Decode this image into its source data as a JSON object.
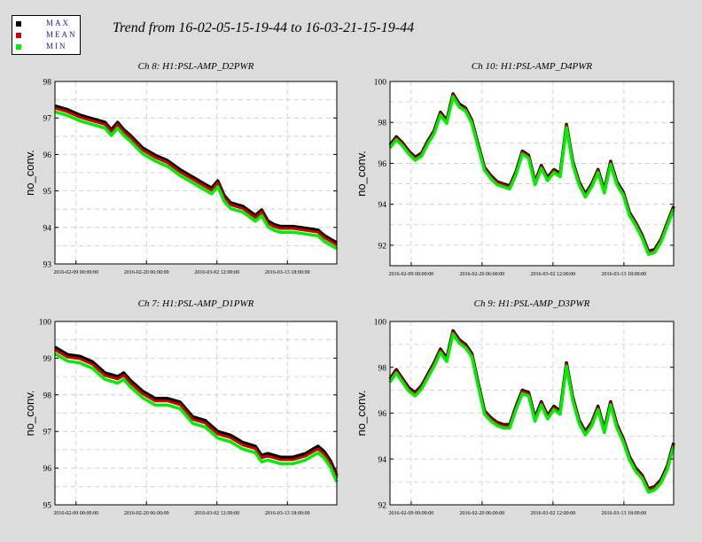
{
  "title": "Trend from 16-02-05-15-19-44 to 16-03-21-15-19-44",
  "legend": [
    {
      "label": "MAX",
      "color": "#000000"
    },
    {
      "label": "MEAN",
      "color": "#cc0000"
    },
    {
      "label": "MIN",
      "color": "#00ee00"
    }
  ],
  "colors": {
    "max": "#000000",
    "mean": "#cc0000",
    "min": "#00ee00",
    "grid": "#c8c8c8",
    "plot_bg": "#ffffff"
  },
  "chart_data": [
    {
      "type": "line",
      "title": "Ch 8: H1:PSL-AMP_D2PWR",
      "ylabel": "no_conv.",
      "ylim": [
        93,
        98
      ],
      "yticks": [
        "93",
        "94",
        "95",
        "96",
        "97",
        "98"
      ],
      "xlim": [
        0,
        45
      ],
      "xticks": [
        {
          "pos": 3.36,
          "label": "2016-02-09 00:00:00"
        },
        {
          "pos": 14.61,
          "label": "2016-02-20 06:00:00"
        },
        {
          "pos": 25.86,
          "label": "2016-03-02 12:00:00"
        },
        {
          "pos": 37.11,
          "label": "2016-03-13 18:00:00"
        }
      ],
      "x": [
        0,
        2,
        4,
        6,
        8,
        9,
        10,
        11,
        12,
        14,
        16,
        18,
        20,
        22,
        24,
        25,
        26,
        27,
        28,
        30,
        32,
        33,
        34,
        35,
        36,
        38,
        40,
        42,
        43,
        44,
        45
      ],
      "series": [
        {
          "name": "MIN",
          "values": [
            97.25,
            97.15,
            97.0,
            96.9,
            96.8,
            96.6,
            96.8,
            96.6,
            96.45,
            96.1,
            95.9,
            95.75,
            95.5,
            95.3,
            95.1,
            95.0,
            95.2,
            94.8,
            94.6,
            94.5,
            94.25,
            94.4,
            94.1,
            94.0,
            93.95,
            93.95,
            93.9,
            93.85,
            93.7,
            93.6,
            93.5
          ]
        }
      ],
      "spread": {
        "max": 0.08,
        "min": -0.08
      }
    },
    {
      "type": "line",
      "title": "Ch 10: H1:PSL-AMP_D4PWR",
      "ylabel": "no_conv.",
      "ylim": [
        91,
        100
      ],
      "yticks": [
        "92",
        "94",
        "96",
        "98",
        "100"
      ],
      "xlim": [
        0,
        45
      ],
      "xticks": [
        {
          "pos": 3.36,
          "label": "2016-02-09 00:00:00"
        },
        {
          "pos": 14.61,
          "label": "2016-02-20 06:00:00"
        },
        {
          "pos": 25.86,
          "label": "2016-03-02 12:00:00"
        },
        {
          "pos": 37.11,
          "label": "2016-03-13 18:00:00"
        }
      ],
      "x": [
        0,
        1,
        2,
        3,
        4,
        5,
        6,
        7,
        8,
        9,
        10,
        11,
        12,
        13,
        14,
        15,
        16,
        17,
        18,
        19,
        20,
        21,
        22,
        23,
        24,
        25,
        26,
        27,
        28,
        29,
        30,
        31,
        32,
        33,
        34,
        35,
        36,
        37,
        38,
        39,
        40,
        41,
        42,
        43,
        44,
        45
      ],
      "series": [
        {
          "name": "MIN",
          "values": [
            96.8,
            97.2,
            96.9,
            96.5,
            96.2,
            96.4,
            97.0,
            97.5,
            98.4,
            98.0,
            99.3,
            98.8,
            98.6,
            98.0,
            96.8,
            95.7,
            95.3,
            95.0,
            94.9,
            94.8,
            95.5,
            96.5,
            96.3,
            95.0,
            95.8,
            95.2,
            95.6,
            95.4,
            97.8,
            96.0,
            95.0,
            94.4,
            94.9,
            95.6,
            94.6,
            96.0,
            95.0,
            94.5,
            93.5,
            93.0,
            92.4,
            91.6,
            91.7,
            92.2,
            93.0,
            93.8
          ]
        }
      ],
      "spread": {
        "max": 0.1,
        "min": -0.05
      }
    },
    {
      "type": "line",
      "title": "Ch 7: H1:PSL-AMP_D1PWR",
      "ylabel": "no_conv.",
      "ylim": [
        95,
        100
      ],
      "yticks": [
        "95",
        "96",
        "97",
        "98",
        "99",
        "100"
      ],
      "xlim": [
        0,
        45
      ],
      "xticks": [
        {
          "pos": 3.36,
          "label": "2016-02-09 00:00:00"
        },
        {
          "pos": 14.61,
          "label": "2016-02-20 06:00:00"
        },
        {
          "pos": 25.86,
          "label": "2016-03-02 12:00:00"
        },
        {
          "pos": 37.11,
          "label": "2016-03-13 18:00:00"
        }
      ],
      "x": [
        0,
        2,
        4,
        6,
        8,
        10,
        11,
        12,
        14,
        16,
        18,
        20,
        22,
        24,
        26,
        28,
        30,
        32,
        33,
        34,
        36,
        38,
        40,
        41,
        42,
        43,
        44,
        45
      ],
      "series": [
        {
          "name": "MIN",
          "values": [
            99.2,
            99.0,
            98.95,
            98.8,
            98.5,
            98.4,
            98.5,
            98.3,
            98.0,
            97.8,
            97.8,
            97.7,
            97.3,
            97.2,
            96.9,
            96.8,
            96.6,
            96.5,
            96.25,
            96.3,
            96.2,
            96.2,
            96.3,
            96.4,
            96.5,
            96.35,
            96.1,
            95.7
          ]
        }
      ],
      "spread": {
        "max": 0.1,
        "min": -0.08
      }
    },
    {
      "type": "line",
      "title": "Ch 9: H1:PSL-AMP_D3PWR",
      "ylabel": "no_conv.",
      "ylim": [
        92,
        100
      ],
      "yticks": [
        "92",
        "94",
        "96",
        "98",
        "100"
      ],
      "xlim": [
        0,
        45
      ],
      "xticks": [
        {
          "pos": 3.36,
          "label": "2016-02-09 00:00:00"
        },
        {
          "pos": 14.61,
          "label": "2016-02-20 06:00:00"
        },
        {
          "pos": 25.86,
          "label": "2016-03-02 12:00:00"
        },
        {
          "pos": 37.11,
          "label": "2016-03-13 18:00:00"
        }
      ],
      "x": [
        0,
        1,
        2,
        3,
        4,
        5,
        6,
        7,
        8,
        9,
        10,
        11,
        12,
        13,
        14,
        15,
        16,
        17,
        18,
        19,
        20,
        21,
        22,
        23,
        24,
        25,
        26,
        27,
        28,
        29,
        30,
        31,
        32,
        33,
        34,
        35,
        36,
        37,
        38,
        39,
        40,
        41,
        42,
        43,
        44,
        45
      ],
      "series": [
        {
          "name": "MIN",
          "values": [
            97.4,
            97.8,
            97.4,
            97.0,
            96.8,
            97.1,
            97.6,
            98.1,
            98.7,
            98.3,
            99.5,
            99.1,
            98.9,
            98.5,
            97.2,
            96.0,
            95.7,
            95.5,
            95.4,
            95.4,
            96.2,
            96.9,
            96.8,
            95.7,
            96.4,
            95.8,
            96.2,
            96.0,
            98.1,
            96.6,
            95.6,
            95.1,
            95.5,
            96.2,
            95.2,
            96.4,
            95.4,
            94.8,
            94.0,
            93.5,
            93.2,
            92.6,
            92.7,
            93.0,
            93.6,
            94.6
          ]
        }
      ],
      "spread": {
        "max": 0.1,
        "min": -0.05
      }
    }
  ]
}
